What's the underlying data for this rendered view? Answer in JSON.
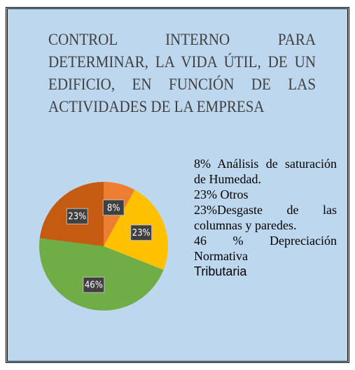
{
  "chart_data": {
    "type": "pie",
    "title": "CONTROL INTERNO PARA DETERMINAR, LA VIDA ÚTIL, DE UN EDIFICIO, EN FUNCIÓN DE LAS ACTIVIDADES DE LA EMPRESA",
    "values": [
      8,
      23,
      46,
      23
    ],
    "value_labels": [
      "8%",
      "23%",
      "46%",
      "23%"
    ],
    "colors": [
      "#ed7d31",
      "#ffc000",
      "#70ad47",
      "#c55a11"
    ],
    "legend_text": [
      "8% Análisis de saturación de Humedad.",
      "23% Otros",
      "23%Desgaste de las columnas y paredes.",
      "46 % Depreciación Normativa",
      "Tributaria"
    ]
  }
}
